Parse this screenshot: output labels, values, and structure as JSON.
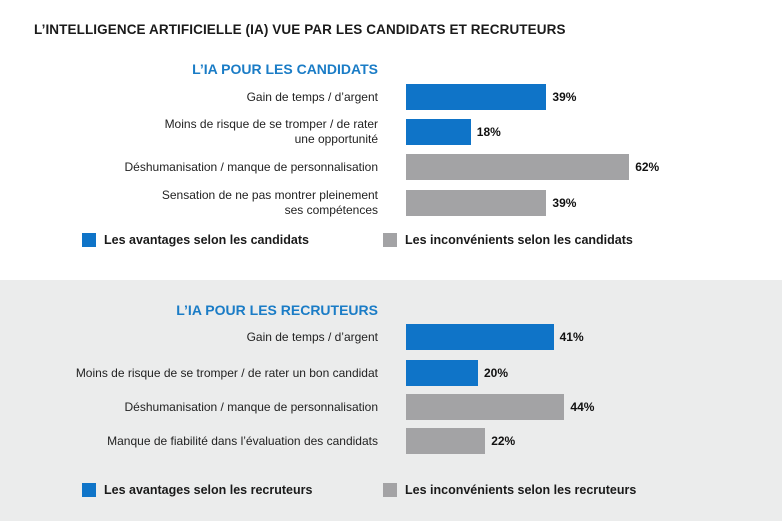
{
  "title": "L’INTELLIGENCE ARTIFICIELLE (IA) VUE PAR LES CANDIDATS ET RECRUTEURS",
  "colors": {
    "advantage": "#0f74c8",
    "disadvantage": "#a3a3a5",
    "section_title": "#1a7cc6",
    "panel2_bg": "#ebecec"
  },
  "chart_data": [
    {
      "type": "bar",
      "orientation": "horizontal",
      "title": "L’IA POUR LES CANDIDATS",
      "categories": [
        "Gain de temps / d’argent",
        "Moins de risque de se tromper / de rater\nune opportunité",
        "Déshumanisation / manque de personnalisation",
        "Sensation de ne pas montrer pleinement\nses compétences"
      ],
      "values": [
        39,
        18,
        62,
        39
      ],
      "value_labels": [
        "39%",
        "18%",
        "62%",
        "39%"
      ],
      "groups": [
        "advantage",
        "advantage",
        "disadvantage",
        "disadvantage"
      ],
      "legend": [
        {
          "label": "Les avantages selon les candidats",
          "group": "advantage"
        },
        {
          "label": "Les inconvénients selon les candidats",
          "group": "disadvantage"
        }
      ],
      "xlim": [
        0,
        100
      ],
      "grid": false
    },
    {
      "type": "bar",
      "orientation": "horizontal",
      "title": "L’IA POUR LES RECRUTEURS",
      "categories": [
        "Gain de temps / d’argent",
        "Moins de risque de se tromper / de rater un bon candidat",
        "Déshumanisation / manque de personnalisation",
        "Manque de fiabilité dans l’évaluation des candidats"
      ],
      "values": [
        41,
        20,
        44,
        22
      ],
      "value_labels": [
        "41%",
        "20%",
        "44%",
        "22%"
      ],
      "groups": [
        "advantage",
        "advantage",
        "disadvantage",
        "disadvantage"
      ],
      "legend": [
        {
          "label": "Les avantages selon les recruteurs",
          "group": "advantage"
        },
        {
          "label": "Les inconvénients selon les recruteurs",
          "group": "disadvantage"
        }
      ],
      "xlim": [
        0,
        100
      ],
      "grid": false
    }
  ]
}
